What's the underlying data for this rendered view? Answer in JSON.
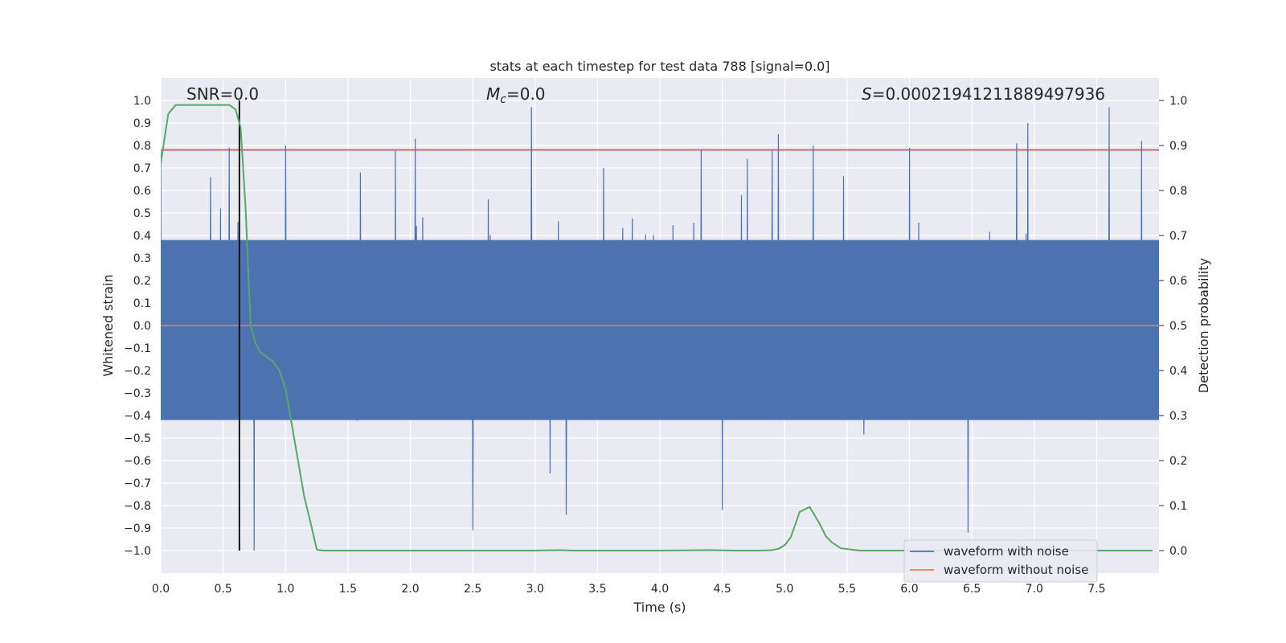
{
  "chart_data": {
    "type": "line",
    "title": "stats at each timestep for test data 788 [signal=0.0]",
    "xlabel": "Time (s)",
    "ylabel_left": "Whitened strain",
    "ylabel_right": "Detection probability",
    "xlim": [
      0.0,
      8.0
    ],
    "ylim_left": [
      -1.1,
      1.1
    ],
    "ylim_right": [
      -0.05,
      1.05
    ],
    "x_ticks": [
      0.0,
      0.5,
      1.0,
      1.5,
      2.0,
      2.5,
      3.0,
      3.5,
      4.0,
      4.5,
      5.0,
      5.5,
      6.0,
      6.5,
      7.0,
      7.5
    ],
    "x_tick_labels": [
      "0.0",
      "0.5",
      "1.0",
      "1.5",
      "2.0",
      "2.5",
      "3.0",
      "3.5",
      "4.0",
      "4.5",
      "5.0",
      "5.5",
      "6.0",
      "6.5",
      "7.0",
      "7.5"
    ],
    "y_left_ticks": [
      1.0,
      0.9,
      0.8,
      0.7,
      0.6,
      0.5,
      0.4,
      0.3,
      0.2,
      0.1,
      0.0,
      -0.1,
      -0.2,
      -0.3,
      -0.4,
      -0.5,
      -0.6,
      -0.7,
      -0.8,
      -0.9,
      -1.0
    ],
    "y_left_tick_labels": [
      "1.0",
      "0.9",
      "0.8",
      "0.7",
      "0.6",
      "0.5",
      "0.4",
      "0.3",
      "0.2",
      "0.1",
      "0.0",
      "−0.1",
      "−0.2",
      "−0.3",
      "−0.4",
      "−0.5",
      "−0.6",
      "−0.7",
      "−0.8",
      "−0.9",
      "−1.0"
    ],
    "y_right_ticks": [
      1.0,
      0.9,
      0.8,
      0.7,
      0.6,
      0.5,
      0.4,
      0.3,
      0.2,
      0.1,
      0.0
    ],
    "y_right_tick_labels": [
      "1.0",
      "0.9",
      "0.8",
      "0.7",
      "0.6",
      "0.5",
      "0.4",
      "0.3",
      "0.2",
      "0.1",
      "0.0"
    ],
    "annotations": {
      "snr": "SNR=0.0",
      "mc_symbol": "M",
      "mc_subscript": "c",
      "mc_value": "=0.0",
      "s_symbol": "S",
      "s_value": "=0.00021941211889497936"
    },
    "series": [
      {
        "name": "waveform with noise",
        "axis": "left",
        "color": "#4c72b0",
        "description": "dense noise trace, roughly ±0.4 typical amplitude with peaks up to ~0.98 and down to ~-1.0",
        "envelope_peaks": [
          [
            0.0,
            0.78
          ],
          [
            0.4,
            0.66
          ],
          [
            0.55,
            0.79
          ],
          [
            0.62,
            0.46
          ],
          [
            0.75,
            -1.0
          ],
          [
            1.0,
            0.8
          ],
          [
            1.6,
            0.68
          ],
          [
            1.88,
            0.78
          ],
          [
            2.04,
            0.83
          ],
          [
            2.5,
            -0.91
          ],
          [
            2.97,
            0.97
          ],
          [
            3.25,
            -0.84
          ],
          [
            3.55,
            0.7
          ],
          [
            4.33,
            0.78
          ],
          [
            4.5,
            -0.82
          ],
          [
            4.7,
            0.74
          ],
          [
            4.9,
            0.78
          ],
          [
            4.95,
            0.85
          ],
          [
            5.23,
            0.8
          ],
          [
            6.0,
            0.79
          ],
          [
            6.47,
            -0.92
          ],
          [
            6.86,
            0.81
          ],
          [
            6.95,
            0.9
          ],
          [
            7.6,
            0.97
          ],
          [
            7.86,
            0.82
          ]
        ],
        "typical_upper": 0.38,
        "typical_lower": -0.42
      },
      {
        "name": "waveform without noise",
        "axis": "left",
        "color": "#dd8452",
        "x": [
          0.0,
          8.0
        ],
        "y": [
          0.0,
          0.0
        ]
      },
      {
        "name": "detection probability",
        "axis": "right",
        "color": "#55a868",
        "x": [
          0.0,
          0.06,
          0.12,
          0.2,
          0.3,
          0.4,
          0.5,
          0.55,
          0.6,
          0.64,
          0.68,
          0.72,
          0.76,
          0.8,
          0.85,
          0.9,
          0.95,
          1.0,
          1.05,
          1.1,
          1.15,
          1.2,
          1.25,
          1.3,
          1.5,
          2.0,
          2.5,
          3.0,
          3.2,
          3.3,
          3.5,
          4.0,
          4.4,
          4.6,
          4.8,
          4.9,
          4.95,
          5.0,
          5.05,
          5.12,
          5.2,
          5.28,
          5.33,
          5.38,
          5.45,
          5.6,
          6.0,
          7.0,
          7.95
        ],
        "y": [
          0.86,
          0.97,
          0.99,
          0.99,
          0.99,
          0.99,
          0.99,
          0.99,
          0.98,
          0.94,
          0.76,
          0.5,
          0.46,
          0.44,
          0.43,
          0.42,
          0.4,
          0.36,
          0.28,
          0.2,
          0.12,
          0.063,
          0.002,
          0.0,
          0.0,
          0.0,
          0.0,
          0.0,
          0.001,
          0.0,
          0.0,
          0.0,
          0.001,
          0.0,
          0.0,
          0.001,
          0.004,
          0.012,
          0.03,
          0.086,
          0.097,
          0.06,
          0.032,
          0.018,
          0.005,
          0.0,
          0.0,
          0.0,
          0.0
        ]
      }
    ],
    "hlines": [
      {
        "name": "threshold",
        "axis": "left",
        "y": 0.78,
        "color": "#c44e52"
      },
      {
        "name": "baseline",
        "axis": "left",
        "y": 0.0,
        "color": "#dd8452"
      }
    ],
    "vlines": [
      {
        "name": "detection-time",
        "x": 0.63,
        "y_range": [
          -1.0,
          1.0
        ],
        "color": "#000000"
      }
    ],
    "legend": {
      "placement": "lower-right",
      "entries": [
        {
          "label": "waveform with noise",
          "color": "#4c72b0"
        },
        {
          "label": "waveform without noise",
          "color": "#dd8452"
        }
      ]
    },
    "grid": true,
    "background": "#eaeaf2"
  }
}
